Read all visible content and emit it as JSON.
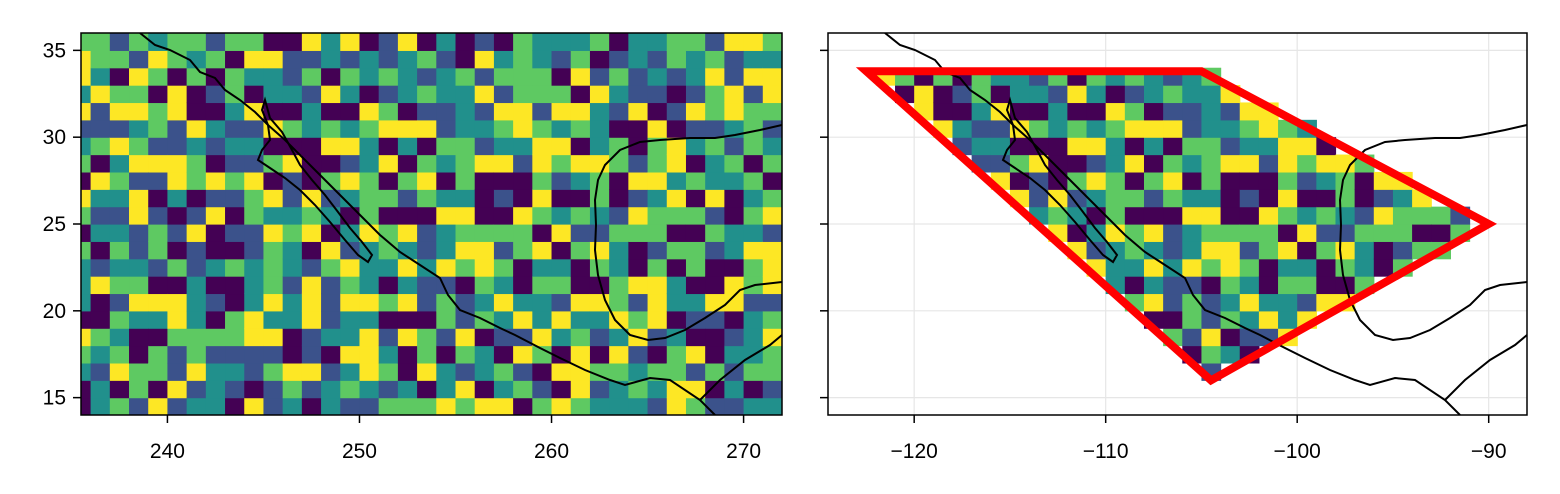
{
  "chart_data": [
    {
      "type": "heatmap",
      "title": "",
      "xlabel": "",
      "ylabel": "",
      "xlim": [
        235.5,
        272
      ],
      "ylim": [
        14,
        36
      ],
      "xticks": [
        240,
        250,
        260,
        270
      ],
      "yticks": [
        15,
        20,
        25,
        30,
        35
      ],
      "xtick_labels": [
        "240",
        "250",
        "260",
        "270"
      ],
      "ytick_labels": [
        "15",
        "20",
        "25",
        "30",
        "35"
      ],
      "grid": false,
      "colormap": "viridis",
      "grid_step_degrees": 1,
      "overlay": "coastlines"
    },
    {
      "type": "heatmap",
      "title": "",
      "xlabel": "",
      "ylabel": "",
      "xlim": [
        -124.5,
        -88
      ],
      "ylim": [
        14,
        36
      ],
      "xticks": [
        -120,
        -110,
        -100,
        -90
      ],
      "yticks": [
        15,
        20,
        25,
        30,
        35
      ],
      "xtick_labels": [
        "−120",
        "−110",
        "−100",
        "−90"
      ],
      "ytick_labels": [],
      "grid": true,
      "colormap": "viridis",
      "grid_step_degrees": 1,
      "overlay": "coastlines",
      "polygon": {
        "color": "#ff0000",
        "vertices": [
          [
            -122.5,
            33.8
          ],
          [
            -105,
            33.8
          ],
          [
            -90,
            25
          ],
          [
            -104.5,
            16
          ]
        ]
      }
    }
  ],
  "colors": {
    "viridis": [
      "#440154",
      "#3b528b",
      "#21908c",
      "#5ec962",
      "#fde725"
    ],
    "polygon": "#ff0000",
    "coastline": "#000000",
    "grid": "#e6e6e6"
  }
}
